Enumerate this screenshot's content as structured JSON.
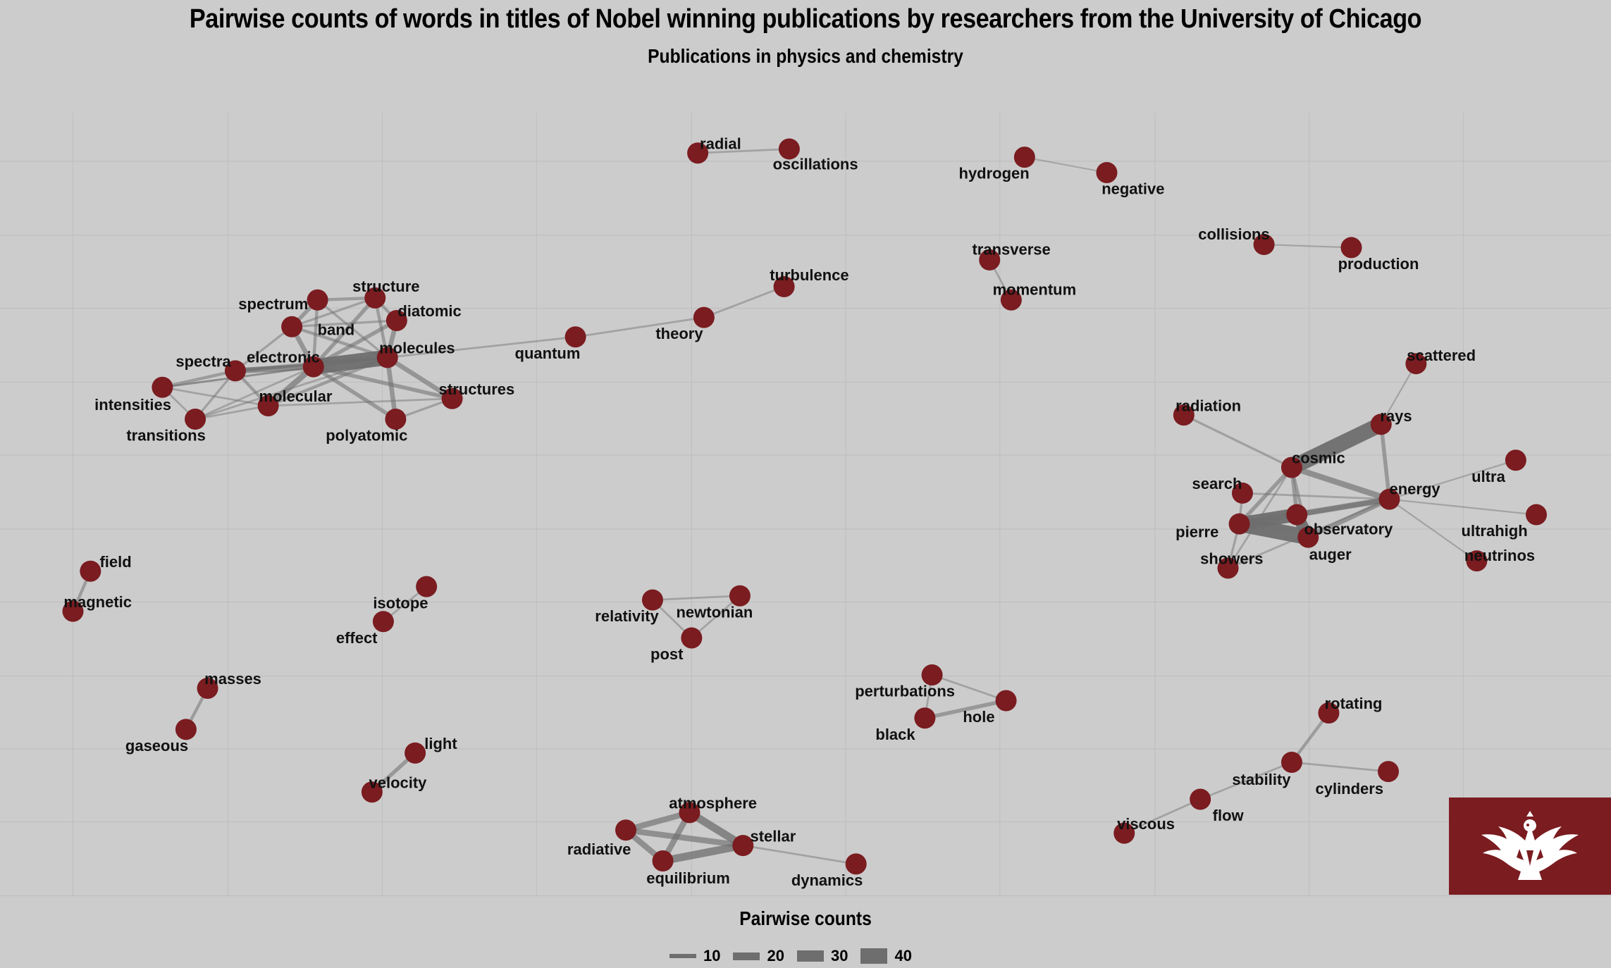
{
  "title": "Pairwise counts of words in titles of Nobel winning publications by researchers from the University of Chicago",
  "subtitle": "Publications in physics and chemistry",
  "legend": {
    "title": "Pairwise counts",
    "keys": [
      {
        "label": "10",
        "value": 10
      },
      {
        "label": "20",
        "value": 20
      },
      {
        "label": "30",
        "value": 30
      },
      {
        "label": "40",
        "value": 40
      }
    ]
  },
  "colors": {
    "background": "#cccccc",
    "node": "#7a1c20",
    "edge": "#6e6e6e",
    "logo": "#7a1c20"
  },
  "logo_icon": "phoenix-logo-icon",
  "nodes": [
    {
      "id": "radial",
      "label": "radial"
    },
    {
      "id": "oscillations",
      "label": "oscillations"
    },
    {
      "id": "hydrogen",
      "label": "hydrogen"
    },
    {
      "id": "negative",
      "label": "negative"
    },
    {
      "id": "collisions",
      "label": "collisions"
    },
    {
      "id": "production",
      "label": "production"
    },
    {
      "id": "transverse",
      "label": "transverse"
    },
    {
      "id": "momentum",
      "label": "momentum"
    },
    {
      "id": "turbulence",
      "label": "turbulence"
    },
    {
      "id": "theory",
      "label": "theory"
    },
    {
      "id": "quantum",
      "label": "quantum"
    },
    {
      "id": "structure",
      "label": "structure"
    },
    {
      "id": "spectrum",
      "label": "spectrum"
    },
    {
      "id": "diatomic",
      "label": "diatomic"
    },
    {
      "id": "band",
      "label": "band"
    },
    {
      "id": "molecules",
      "label": "molecules"
    },
    {
      "id": "electronic",
      "label": "electronic"
    },
    {
      "id": "spectra",
      "label": "spectra"
    },
    {
      "id": "intensities",
      "label": "intensities"
    },
    {
      "id": "molecular",
      "label": "molecular"
    },
    {
      "id": "structures",
      "label": "structures"
    },
    {
      "id": "transitions",
      "label": "transitions"
    },
    {
      "id": "polyatomic",
      "label": "polyatomic"
    },
    {
      "id": "scattered",
      "label": "scattered"
    },
    {
      "id": "radiation",
      "label": "radiation"
    },
    {
      "id": "rays",
      "label": "rays"
    },
    {
      "id": "cosmic",
      "label": "cosmic"
    },
    {
      "id": "ultra",
      "label": "ultra"
    },
    {
      "id": "search",
      "label": "search"
    },
    {
      "id": "energy",
      "label": "energy"
    },
    {
      "id": "pierre",
      "label": "pierre"
    },
    {
      "id": "observatory",
      "label": "observatory"
    },
    {
      "id": "ultrahigh",
      "label": "ultrahigh"
    },
    {
      "id": "auger",
      "label": "auger"
    },
    {
      "id": "showers",
      "label": "showers"
    },
    {
      "id": "neutrinos",
      "label": "neutrinos"
    },
    {
      "id": "field",
      "label": "field"
    },
    {
      "id": "magnetic",
      "label": "magnetic"
    },
    {
      "id": "isotope",
      "label": "isotope"
    },
    {
      "id": "effect",
      "label": "effect"
    },
    {
      "id": "relativity",
      "label": "relativity"
    },
    {
      "id": "newtonian",
      "label": "newtonian"
    },
    {
      "id": "post",
      "label": "post"
    },
    {
      "id": "masses",
      "label": "masses"
    },
    {
      "id": "gaseous",
      "label": "gaseous"
    },
    {
      "id": "perturbations",
      "label": "perturbations"
    },
    {
      "id": "hole",
      "label": "hole"
    },
    {
      "id": "black",
      "label": "black"
    },
    {
      "id": "rotating",
      "label": "rotating"
    },
    {
      "id": "light",
      "label": "light"
    },
    {
      "id": "velocity",
      "label": "velocity"
    },
    {
      "id": "stability",
      "label": "stability"
    },
    {
      "id": "cylinders",
      "label": "cylinders"
    },
    {
      "id": "atmosphere",
      "label": "atmosphere"
    },
    {
      "id": "stellar",
      "label": "stellar"
    },
    {
      "id": "radiative",
      "label": "radiative"
    },
    {
      "id": "equilibrium",
      "label": "equilibrium"
    },
    {
      "id": "dynamics",
      "label": "dynamics"
    },
    {
      "id": "flow",
      "label": "flow"
    },
    {
      "id": "viscous",
      "label": "viscous"
    }
  ],
  "edges": [
    {
      "source": "radial",
      "target": "oscillations",
      "count": 5
    },
    {
      "source": "hydrogen",
      "target": "negative",
      "count": 3
    },
    {
      "source": "collisions",
      "target": "production",
      "count": 4
    },
    {
      "source": "transverse",
      "target": "momentum",
      "count": 5
    },
    {
      "source": "turbulence",
      "target": "theory",
      "count": 5
    },
    {
      "source": "theory",
      "target": "quantum",
      "count": 5
    },
    {
      "source": "quantum",
      "target": "molecules",
      "count": 5
    },
    {
      "source": "electronic",
      "target": "molecules",
      "count": 40
    },
    {
      "source": "spectra",
      "target": "electronic",
      "count": 15
    },
    {
      "source": "spectra",
      "target": "molecules",
      "count": 10
    },
    {
      "source": "electronic",
      "target": "band",
      "count": 12
    },
    {
      "source": "electronic",
      "target": "structure",
      "count": 10
    },
    {
      "source": "electronic",
      "target": "molecular",
      "count": 15
    },
    {
      "source": "electronic",
      "target": "structures",
      "count": 10
    },
    {
      "source": "electronic",
      "target": "polyatomic",
      "count": 10
    },
    {
      "source": "electronic",
      "target": "diatomic",
      "count": 10
    },
    {
      "source": "electronic",
      "target": "spectrum",
      "count": 8
    },
    {
      "source": "electronic",
      "target": "intensities",
      "count": 5
    },
    {
      "source": "electronic",
      "target": "transitions",
      "count": 5
    },
    {
      "source": "molecules",
      "target": "structure",
      "count": 8
    },
    {
      "source": "molecules",
      "target": "diatomic",
      "count": 12
    },
    {
      "source": "molecules",
      "target": "band",
      "count": 8
    },
    {
      "source": "molecules",
      "target": "structures",
      "count": 12
    },
    {
      "source": "molecules",
      "target": "polyatomic",
      "count": 12
    },
    {
      "source": "molecules",
      "target": "spectrum",
      "count": 6
    },
    {
      "source": "molecules",
      "target": "molecular",
      "count": 8
    },
    {
      "source": "spectrum",
      "target": "band",
      "count": 10
    },
    {
      "source": "spectrum",
      "target": "structure",
      "count": 8
    },
    {
      "source": "structure",
      "target": "diatomic",
      "count": 8
    },
    {
      "source": "band",
      "target": "structure",
      "count": 6
    },
    {
      "source": "band",
      "target": "diatomic",
      "count": 6
    },
    {
      "source": "band",
      "target": "spectra",
      "count": 6
    },
    {
      "source": "spectra",
      "target": "intensities",
      "count": 8
    },
    {
      "source": "spectra",
      "target": "transitions",
      "count": 6
    },
    {
      "source": "spectra",
      "target": "molecular",
      "count": 8
    },
    {
      "source": "intensities",
      "target": "molecular",
      "count": 5
    },
    {
      "source": "intensities",
      "target": "transitions",
      "count": 5
    },
    {
      "source": "intensities",
      "target": "molecules",
      "count": 5
    },
    {
      "source": "transitions",
      "target": "molecular",
      "count": 5
    },
    {
      "source": "transitions",
      "target": "molecules",
      "count": 5
    },
    {
      "source": "molecular",
      "target": "structures",
      "count": 5
    },
    {
      "source": "structures",
      "target": "polyatomic",
      "count": 6
    },
    {
      "source": "molecules",
      "target": "spectra",
      "count": 6
    },
    {
      "source": "cosmic",
      "target": "rays",
      "count": 40
    },
    {
      "source": "pierre",
      "target": "auger",
      "count": 40
    },
    {
      "source": "pierre",
      "target": "observatory",
      "count": 35
    },
    {
      "source": "auger",
      "target": "observatory",
      "count": 30
    },
    {
      "source": "pierre",
      "target": "energy",
      "count": 15
    },
    {
      "source": "auger",
      "target": "energy",
      "count": 12
    },
    {
      "source": "observatory",
      "target": "energy",
      "count": 12
    },
    {
      "source": "cosmic",
      "target": "energy",
      "count": 15
    },
    {
      "source": "rays",
      "target": "energy",
      "count": 10
    },
    {
      "source": "cosmic",
      "target": "pierre",
      "count": 10
    },
    {
      "source": "cosmic",
      "target": "observatory",
      "count": 10
    },
    {
      "source": "cosmic",
      "target": "auger",
      "count": 8
    },
    {
      "source": "radiation",
      "target": "cosmic",
      "count": 6
    },
    {
      "source": "scattered",
      "target": "rays",
      "count": 4
    },
    {
      "source": "search",
      "target": "pierre",
      "count": 6
    },
    {
      "source": "search",
      "target": "energy",
      "count": 5
    },
    {
      "source": "showers",
      "target": "pierre",
      "count": 6
    },
    {
      "source": "showers",
      "target": "energy",
      "count": 5
    },
    {
      "source": "showers",
      "target": "cosmic",
      "count": 5
    },
    {
      "source": "energy",
      "target": "ultra",
      "count": 4
    },
    {
      "source": "energy",
      "target": "ultrahigh",
      "count": 4
    },
    {
      "source": "energy",
      "target": "neutrinos",
      "count": 4
    },
    {
      "source": "field",
      "target": "magnetic",
      "count": 8
    },
    {
      "source": "isotope",
      "target": "effect",
      "count": 5
    },
    {
      "source": "relativity",
      "target": "newtonian",
      "count": 5
    },
    {
      "source": "relativity",
      "target": "post",
      "count": 5
    },
    {
      "source": "newtonian",
      "target": "post",
      "count": 5
    },
    {
      "source": "masses",
      "target": "gaseous",
      "count": 8
    },
    {
      "source": "perturbations",
      "target": "hole",
      "count": 5
    },
    {
      "source": "perturbations",
      "target": "black",
      "count": 5
    },
    {
      "source": "black",
      "target": "hole",
      "count": 10
    },
    {
      "source": "light",
      "target": "velocity",
      "count": 10
    },
    {
      "source": "rotating",
      "target": "stability",
      "count": 8
    },
    {
      "source": "stability",
      "target": "cylinders",
      "count": 5
    },
    {
      "source": "stability",
      "target": "flow",
      "count": 5
    },
    {
      "source": "flow",
      "target": "viscous",
      "count": 5
    },
    {
      "source": "atmosphere",
      "target": "stellar",
      "count": 20
    },
    {
      "source": "atmosphere",
      "target": "radiative",
      "count": 15
    },
    {
      "source": "atmosphere",
      "target": "equilibrium",
      "count": 15
    },
    {
      "source": "stellar",
      "target": "radiative",
      "count": 15
    },
    {
      "source": "stellar",
      "target": "equilibrium",
      "count": 20
    },
    {
      "source": "radiative",
      "target": "equilibrium",
      "count": 15
    },
    {
      "source": "stellar",
      "target": "dynamics",
      "count": 5
    }
  ]
}
